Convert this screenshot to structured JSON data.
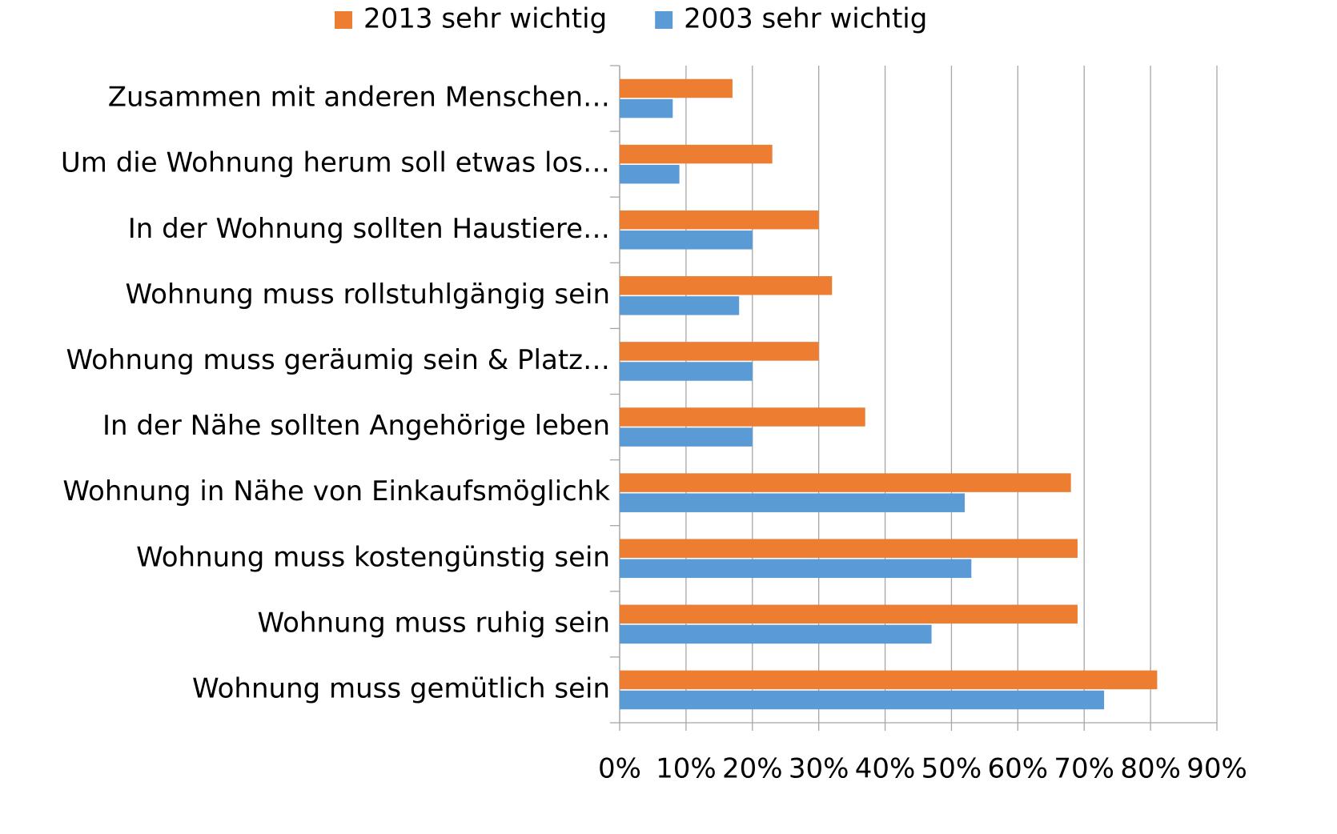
{
  "chart_data": {
    "type": "bar",
    "orientation": "horizontal",
    "categories": [
      "Zusammen mit anderen Menschen…",
      "Um die Wohnung herum soll etwas los…",
      "In der Wohnung sollten Haustiere…",
      "Wohnung muss rollstuhlgängig sein",
      "Wohnung muss geräumig sein & Platz…",
      "In der Nähe sollten Angehörige leben",
      "Wohnung in Nähe von Einkaufsmöglichk",
      "Wohnung muss kostengünstig sein",
      "Wohnung muss ruhig sein",
      "Wohnung muss gemütlich sein"
    ],
    "series": [
      {
        "name": "2013 sehr wichtig",
        "color": "#ed7d31",
        "values": [
          17,
          23,
          30,
          32,
          30,
          37,
          68,
          69,
          69,
          81
        ]
      },
      {
        "name": "2003 sehr wichtig",
        "color": "#5b9bd5",
        "values": [
          8,
          9,
          20,
          18,
          20,
          20,
          52,
          53,
          47,
          73
        ]
      }
    ],
    "xlim": [
      0,
      90
    ],
    "xticks": [
      {
        "value": 0,
        "label": "0%"
      },
      {
        "value": 10,
        "label": "10%"
      },
      {
        "value": 20,
        "label": "20%"
      },
      {
        "value": 30,
        "label": "30%"
      },
      {
        "value": 40,
        "label": "40%"
      },
      {
        "value": 50,
        "label": "50%"
      },
      {
        "value": 60,
        "label": "60%"
      },
      {
        "value": 70,
        "label": "70%"
      },
      {
        "value": 80,
        "label": "80%"
      },
      {
        "value": 90,
        "label": "90%"
      }
    ],
    "grid": true,
    "legend": "top"
  }
}
